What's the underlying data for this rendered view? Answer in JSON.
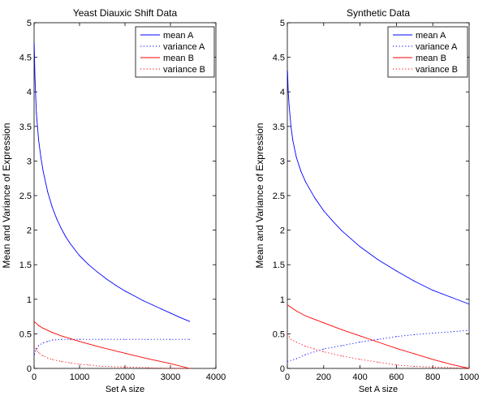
{
  "chart_data": [
    {
      "type": "line",
      "title": "Yeast Diauxic Shift Data",
      "xlabel": "Set A size",
      "ylabel": "Mean and Variance of Expression",
      "xlim": [
        0,
        4000
      ],
      "ylim": [
        0,
        5
      ],
      "xticks": [
        0,
        1000,
        2000,
        3000,
        4000
      ],
      "xtick_labels": [
        "0",
        "1000",
        "2000",
        "3000",
        "4000"
      ],
      "yticks": [
        0,
        0.5,
        1,
        1.5,
        2,
        2.5,
        3,
        3.5,
        4,
        4.5,
        5
      ],
      "ytick_labels": [
        "0",
        "0.5",
        "1",
        "1.5",
        "2",
        "2.5",
        "3",
        "3.5",
        "4",
        "4.5",
        "5"
      ],
      "legend_position": "top-right",
      "series": [
        {
          "name": "mean A",
          "color": "#0000ff",
          "dash": "solid",
          "x": [
            2,
            20,
            50,
            100,
            150,
            200,
            300,
            400,
            500,
            600,
            700,
            800,
            1000,
            1200,
            1400,
            1600,
            1800,
            2000,
            2200,
            2400,
            2600,
            2800,
            3000,
            3200,
            3420
          ],
          "y": [
            4.7,
            4.2,
            3.7,
            3.3,
            3.05,
            2.85,
            2.55,
            2.33,
            2.16,
            2.02,
            1.9,
            1.8,
            1.63,
            1.5,
            1.39,
            1.29,
            1.2,
            1.12,
            1.05,
            0.98,
            0.92,
            0.86,
            0.8,
            0.74,
            0.68
          ]
        },
        {
          "name": "variance A",
          "color": "#0000ff",
          "dash": "dotted",
          "x": [
            5,
            50,
            100,
            200,
            300,
            400,
            600,
            800,
            1000,
            1500,
            2000,
            2500,
            3000,
            3420
          ],
          "y": [
            0.2,
            0.28,
            0.33,
            0.37,
            0.39,
            0.41,
            0.42,
            0.42,
            0.42,
            0.42,
            0.42,
            0.42,
            0.42,
            0.42
          ]
        },
        {
          "name": "mean B",
          "color": "#ff0000",
          "dash": "solid",
          "x": [
            0,
            100,
            200,
            400,
            600,
            800,
            1000,
            1500,
            2000,
            2500,
            3000,
            3420
          ],
          "y": [
            0.68,
            0.62,
            0.58,
            0.52,
            0.47,
            0.43,
            0.39,
            0.3,
            0.22,
            0.14,
            0.07,
            0.0
          ]
        },
        {
          "name": "variance B",
          "color": "#ff0000",
          "dash": "dotted",
          "x": [
            0,
            50,
            100,
            200,
            300,
            400,
            600,
            800,
            1000,
            1200,
            1500,
            2000,
            2500,
            3000,
            3420
          ],
          "y": [
            0.33,
            0.27,
            0.23,
            0.18,
            0.15,
            0.13,
            0.1,
            0.08,
            0.06,
            0.05,
            0.03,
            0.02,
            0.01,
            0.0,
            0.0
          ]
        }
      ]
    },
    {
      "type": "line",
      "title": "Synthetic Data",
      "xlabel": "Set A size",
      "ylabel": "Mean and Variance of Expression",
      "xlim": [
        0,
        1000
      ],
      "ylim": [
        0,
        5
      ],
      "xticks": [
        0,
        200,
        400,
        600,
        800,
        1000
      ],
      "xtick_labels": [
        "0",
        "200",
        "400",
        "600",
        "800",
        "1000"
      ],
      "yticks": [
        0,
        0.5,
        1,
        1.5,
        2,
        2.5,
        3,
        3.5,
        4,
        4.5,
        5
      ],
      "ytick_labels": [
        "0",
        "0.5",
        "1",
        "1.5",
        "2",
        "2.5",
        "3",
        "3.5",
        "4",
        "4.5",
        "5"
      ],
      "legend_position": "top-right",
      "series": [
        {
          "name": "mean A",
          "color": "#0000ff",
          "dash": "solid",
          "x": [
            1,
            5,
            10,
            20,
            30,
            50,
            75,
            100,
            150,
            200,
            250,
            300,
            400,
            500,
            600,
            700,
            800,
            900,
            1000
          ],
          "y": [
            4.3,
            4.0,
            3.8,
            3.5,
            3.3,
            3.05,
            2.85,
            2.7,
            2.47,
            2.28,
            2.13,
            1.99,
            1.76,
            1.57,
            1.41,
            1.26,
            1.13,
            1.03,
            0.93
          ]
        },
        {
          "name": "variance A",
          "color": "#0000ff",
          "dash": "dotted",
          "x": [
            0,
            50,
            100,
            200,
            300,
            400,
            500,
            600,
            700,
            800,
            900,
            1000
          ],
          "y": [
            0.1,
            0.14,
            0.2,
            0.28,
            0.33,
            0.38,
            0.42,
            0.46,
            0.49,
            0.51,
            0.53,
            0.55
          ]
        },
        {
          "name": "mean B",
          "color": "#ff0000",
          "dash": "solid",
          "x": [
            0,
            50,
            100,
            200,
            300,
            400,
            500,
            600,
            700,
            800,
            900,
            1000
          ],
          "y": [
            0.92,
            0.83,
            0.76,
            0.66,
            0.56,
            0.47,
            0.38,
            0.29,
            0.21,
            0.13,
            0.06,
            0.0
          ]
        },
        {
          "name": "variance B",
          "color": "#ff0000",
          "dash": "dotted",
          "x": [
            0,
            20,
            50,
            100,
            150,
            200,
            300,
            400,
            500,
            600,
            700,
            800,
            900,
            1000
          ],
          "y": [
            0.5,
            0.42,
            0.38,
            0.32,
            0.28,
            0.24,
            0.18,
            0.13,
            0.09,
            0.05,
            0.03,
            0.02,
            0.01,
            0.0
          ]
        }
      ]
    }
  ]
}
